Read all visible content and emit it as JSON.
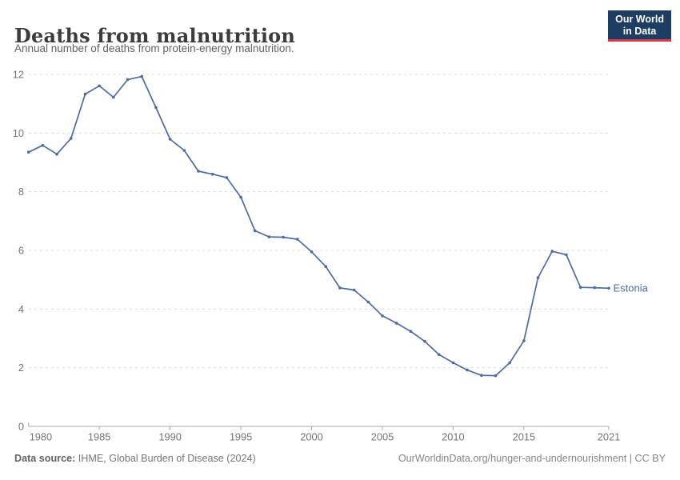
{
  "header": {
    "title": "Deaths from malnutrition",
    "subtitle": "Annual number of deaths from protein-energy malnutrition.",
    "logo": {
      "line1": "Our World",
      "line2": "in Data"
    }
  },
  "chart_data": {
    "type": "line",
    "title": "Deaths from malnutrition",
    "subtitle": "Annual number of deaths from protein-energy malnutrition.",
    "xlabel": "",
    "ylabel": "",
    "xlim": [
      1980,
      2021
    ],
    "ylim": [
      0,
      12
    ],
    "xticks": [
      1980,
      1985,
      1990,
      1995,
      2000,
      2005,
      2010,
      2015,
      2021
    ],
    "yticks": [
      0,
      2,
      4,
      6,
      8,
      10,
      12
    ],
    "grid": "horizontal-dashed",
    "legend_position": "end-of-line-label",
    "series": [
      {
        "name": "Estonia",
        "color": "#4c6ba6",
        "x": [
          1980,
          1981,
          1982,
          1983,
          1984,
          1985,
          1986,
          1987,
          1988,
          1989,
          1990,
          1991,
          1992,
          1993,
          1994,
          1995,
          1996,
          1997,
          1998,
          1999,
          2000,
          2001,
          2002,
          2003,
          2004,
          2005,
          2006,
          2007,
          2008,
          2009,
          2010,
          2011,
          2012,
          2013,
          2014,
          2015,
          2016,
          2017,
          2018,
          2019,
          2020,
          2021
        ],
        "values": [
          9.35,
          9.58,
          9.28,
          9.82,
          11.33,
          11.61,
          11.22,
          11.82,
          11.93,
          10.87,
          9.79,
          9.41,
          8.7,
          8.6,
          8.48,
          7.81,
          6.67,
          6.46,
          6.45,
          6.38,
          5.95,
          5.45,
          4.72,
          4.65,
          4.24,
          3.77,
          3.52,
          3.24,
          2.9,
          2.45,
          2.17,
          1.92,
          1.74,
          1.73,
          2.17,
          2.92,
          5.07,
          5.97,
          5.85,
          4.74,
          4.73,
          4.71
        ]
      }
    ]
  },
  "footer": {
    "source_label": "Data source:",
    "source_text": " IHME, Global Burden of Disease (2024)",
    "credit": "OurWorldinData.org/hunger-and-undernourishment | CC BY"
  },
  "colors": {
    "line": "#4c6ba6",
    "grid": "#dcdcdc",
    "axis": "#a8a8a8",
    "tick_text": "#737373",
    "logo_bg": "#1d3d63",
    "logo_accent": "#d73a49"
  }
}
